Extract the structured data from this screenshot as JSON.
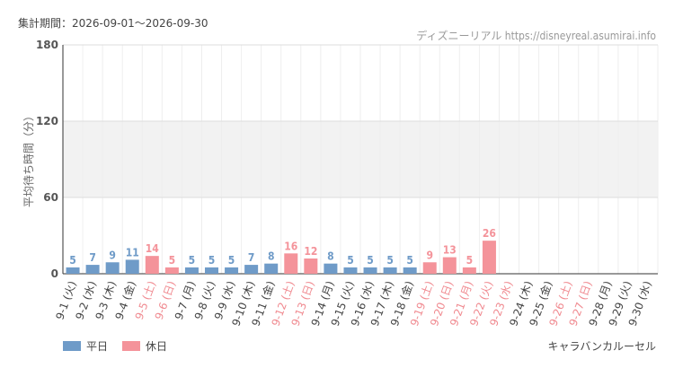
{
  "header": "集計期間：2026-09-01～2026-09-30",
  "source": "ディズニーリアル https://disneyreal.asumirai.info",
  "attraction": "キャラバンカルーセル",
  "chart_data": {
    "type": "bar",
    "y_label": "平均待ち時間（分）",
    "categories": [
      "9-1 (火)",
      "9-2 (水)",
      "9-3 (木)",
      "9-4 (金)",
      "9-5 (土)",
      "9-6 (日)",
      "9-7 (月)",
      "9-8 (火)",
      "9-9 (水)",
      "9-10 (木)",
      "9-11 (金)",
      "9-12 (土)",
      "9-13 (日)",
      "9-14 (月)",
      "9-15 (火)",
      "9-16 (水)",
      "9-17 (木)",
      "9-18 (金)",
      "9-19 (土)",
      "9-20 (日)",
      "9-21 (月)",
      "9-22 (火)",
      "9-23 (水)",
      "9-24 (木)",
      "9-25 (金)",
      "9-26 (土)",
      "9-27 (日)",
      "9-28 (月)",
      "9-29 (火)",
      "9-30 (水)"
    ],
    "category_colors": [
      "#444",
      "#444",
      "#444",
      "#444",
      "#f08a90",
      "#f08a90",
      "#444",
      "#444",
      "#444",
      "#444",
      "#444",
      "#f08a90",
      "#f08a90",
      "#444",
      "#444",
      "#444",
      "#444",
      "#444",
      "#f08a90",
      "#f08a90",
      "#f08a90",
      "#f08a90",
      "#f08a90",
      "#444",
      "#444",
      "#f08a90",
      "#f08a90",
      "#444",
      "#444",
      "#444"
    ],
    "series": [
      {
        "name": "平日",
        "color": "#6f9bc8",
        "values": [
          5,
          7,
          9,
          11,
          null,
          null,
          5,
          5,
          5,
          7,
          8,
          null,
          null,
          8,
          5,
          5,
          5,
          5,
          null,
          null,
          null,
          null,
          null,
          null,
          null,
          null,
          null,
          null,
          null,
          null
        ]
      },
      {
        "name": "休日",
        "color": "#f4939a",
        "values": [
          null,
          null,
          null,
          null,
          14,
          5,
          null,
          null,
          null,
          null,
          null,
          16,
          12,
          null,
          null,
          null,
          null,
          null,
          9,
          13,
          5,
          26,
          null,
          null,
          null,
          null,
          null,
          null,
          null,
          null
        ]
      }
    ],
    "ylim": [
      0,
      180
    ],
    "yticks": [
      0,
      60,
      120,
      180
    ],
    "grid": true
  }
}
